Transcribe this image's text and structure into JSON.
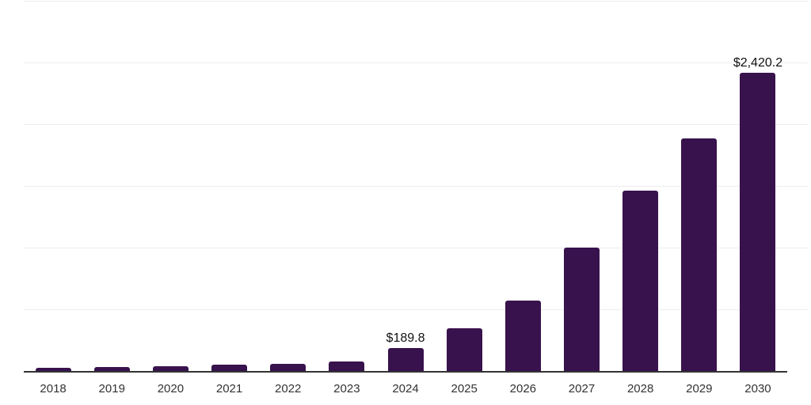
{
  "chart_data": {
    "type": "bar",
    "title": "",
    "xlabel": "",
    "ylabel": "",
    "categories": [
      "2018",
      "2019",
      "2020",
      "2021",
      "2022",
      "2023",
      "2024",
      "2025",
      "2026",
      "2027",
      "2028",
      "2029",
      "2030"
    ],
    "values": [
      35,
      40,
      48,
      55,
      65,
      85,
      189.8,
      355,
      580,
      1005,
      1470,
      1890,
      2420.2
    ],
    "bar_labels": [
      "",
      "",
      "",
      "",
      "",
      "",
      "$189.8",
      "",
      "",
      "",
      "",
      "",
      "$2,420.2"
    ],
    "ylim": [
      0,
      3000
    ],
    "y_gridline_step": 500,
    "grid": true,
    "legend": false,
    "y_tick_labels_visible": false,
    "colors": {
      "bar": "#38124D",
      "axis_line": "#333333",
      "gridline": "#EDEDED",
      "bar_label_text": "#111111",
      "x_tick_text": "#333333",
      "background": "#FFFFFF"
    }
  }
}
